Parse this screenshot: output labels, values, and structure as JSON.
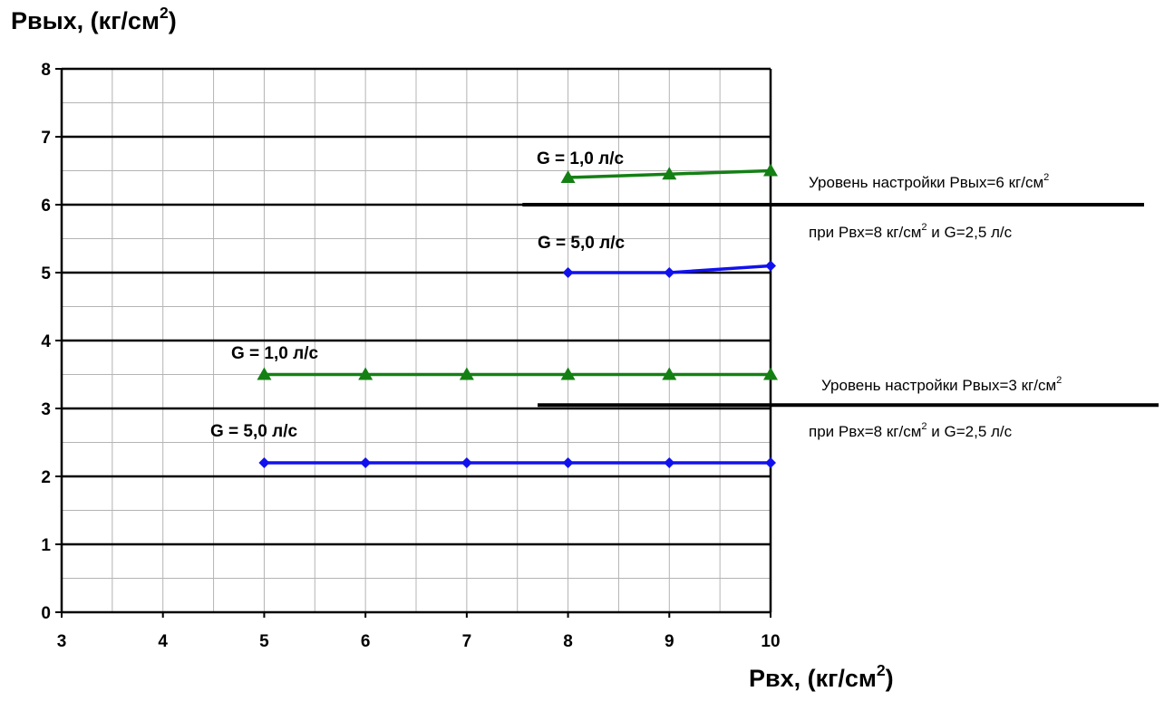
{
  "chart_data": {
    "type": "line",
    "ylabel": {
      "text": "Рвых, (кг/см",
      "sup": "2",
      "tail": ")"
    },
    "xlabel": {
      "text": "Рвх, (кг/см",
      "sup": "2",
      "tail": ")"
    },
    "xlim": [
      3,
      10
    ],
    "ylim": [
      0,
      8
    ],
    "x_ticks": [
      3,
      4,
      5,
      6,
      7,
      8,
      9,
      10
    ],
    "y_ticks": [
      0,
      1,
      2,
      3,
      4,
      5,
      6,
      7,
      8
    ],
    "grid": true,
    "series": [
      {
        "label": "G = 1,0 л/с",
        "color": "#148014",
        "marker": "triangle",
        "x": [
          8,
          9,
          10
        ],
        "y": [
          6.4,
          6.45,
          6.5
        ]
      },
      {
        "label": "G = 5,0 л/с",
        "color": "#1111ee",
        "marker": "diamond",
        "x": [
          8,
          9,
          10
        ],
        "y": [
          5.0,
          5.0,
          5.1
        ]
      },
      {
        "label": "G = 1,0 л/с",
        "color": "#148014",
        "marker": "triangle",
        "x": [
          5,
          6,
          7,
          8,
          9,
          10
        ],
        "y": [
          3.5,
          3.5,
          3.5,
          3.5,
          3.5,
          3.5
        ]
      },
      {
        "label": "G = 5,0 л/с",
        "color": "#1111ee",
        "marker": "diamond",
        "x": [
          5,
          6,
          7,
          8,
          9,
          10
        ],
        "y": [
          2.2,
          2.2,
          2.2,
          2.2,
          2.2,
          2.2
        ]
      }
    ],
    "reference_lines": [
      {
        "y": 6,
        "x_start": 7.55,
        "line1": {
          "text": "Уровень настройки Рвых=6 кг/см",
          "sup": "2"
        },
        "line2": {
          "a": "при Рвх=8 кг/см",
          "sup": "2",
          "b": " и G=2,5 л/с"
        }
      },
      {
        "y": 3.05,
        "x_start": 7.7,
        "line1": {
          "text": "Уровень настройки Рвых=3 кг/см",
          "sup": "2"
        },
        "line2": {
          "a": "при Рвх=8 кг/см",
          "sup": "2",
          "b": " и G=2,5 л/с"
        }
      }
    ]
  }
}
